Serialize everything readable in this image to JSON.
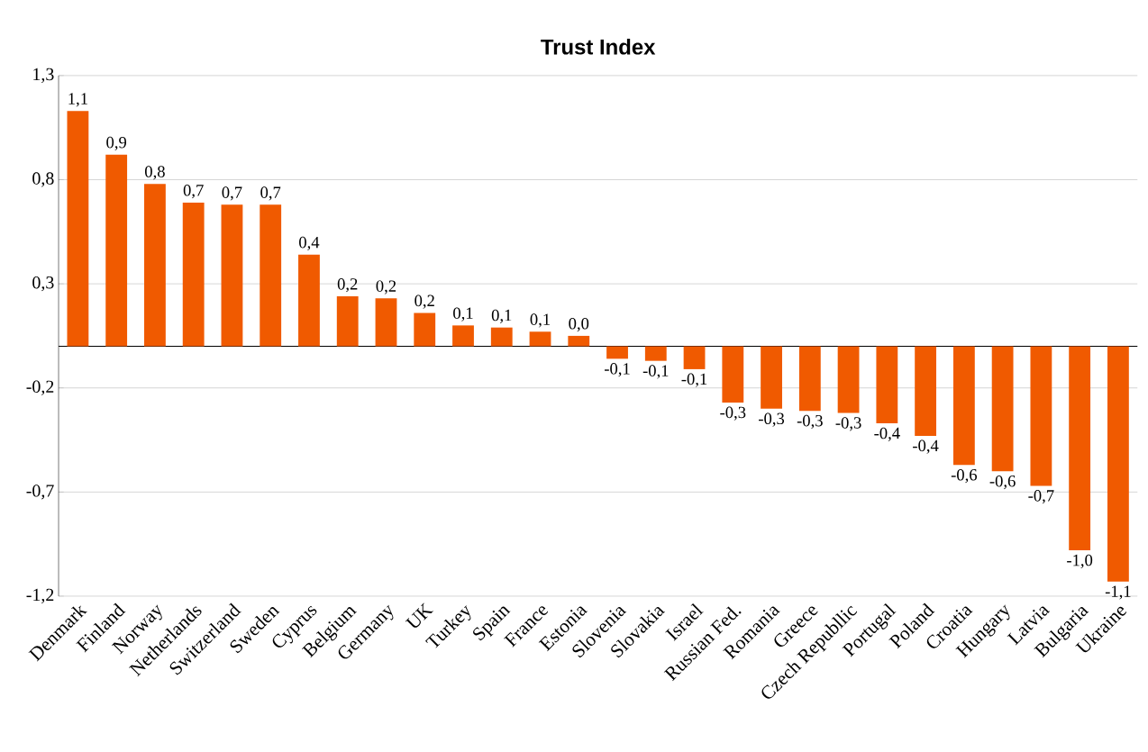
{
  "chart_data": {
    "type": "bar",
    "title": "Trust Index",
    "categories": [
      "Denmark",
      "Finland",
      "Norway",
      "Netherlands",
      "Switzerland",
      "Sweden",
      "Cyprus",
      "Belgium",
      "Germany",
      "UK",
      "Turkey",
      "Spain",
      "France",
      "Estonia",
      "Slovenia",
      "Slovakia",
      "Israel",
      "Russian Fed.",
      "Romania",
      "Greece",
      "Czech Republlic",
      "Portugal",
      "Poland",
      "Croatia",
      "Hungary",
      "Latvia",
      "Bulgaria",
      "Ukraine"
    ],
    "values": [
      1.13,
      0.92,
      0.78,
      0.69,
      0.68,
      0.68,
      0.44,
      0.24,
      0.23,
      0.16,
      0.1,
      0.09,
      0.07,
      0.05,
      -0.06,
      -0.07,
      -0.11,
      -0.27,
      -0.3,
      -0.31,
      -0.32,
      -0.37,
      -0.43,
      -0.57,
      -0.6,
      -0.67,
      -0.98,
      -1.13
    ],
    "value_labels": [
      "1,1",
      "0,9",
      "0,8",
      "0,7",
      "0,7",
      "0,7",
      "0,4",
      "0,2",
      "0,2",
      "0,2",
      "0,1",
      "0,1",
      "0,1",
      "0,0",
      "-0,1",
      "-0,1",
      "-0,1",
      "-0,3",
      "-0,3",
      "-0,3",
      "-0,3",
      "-0,4",
      "-0,4",
      "-0,6",
      "-0,6",
      "-0,7",
      "-1,0",
      "-1,1"
    ],
    "color": "#f05a00",
    "ylim": [
      -1.2,
      1.3
    ],
    "yticks": [
      {
        "value": -1.2,
        "label": "-1,2"
      },
      {
        "value": -0.7,
        "label": "-0,7"
      },
      {
        "value": -0.2,
        "label": "-0,2"
      },
      {
        "value": 0.3,
        "label": "0,3"
      },
      {
        "value": 0.8,
        "label": "0,8"
      },
      {
        "value": 1.3,
        "label": "1,3"
      }
    ],
    "grid": "y"
  }
}
